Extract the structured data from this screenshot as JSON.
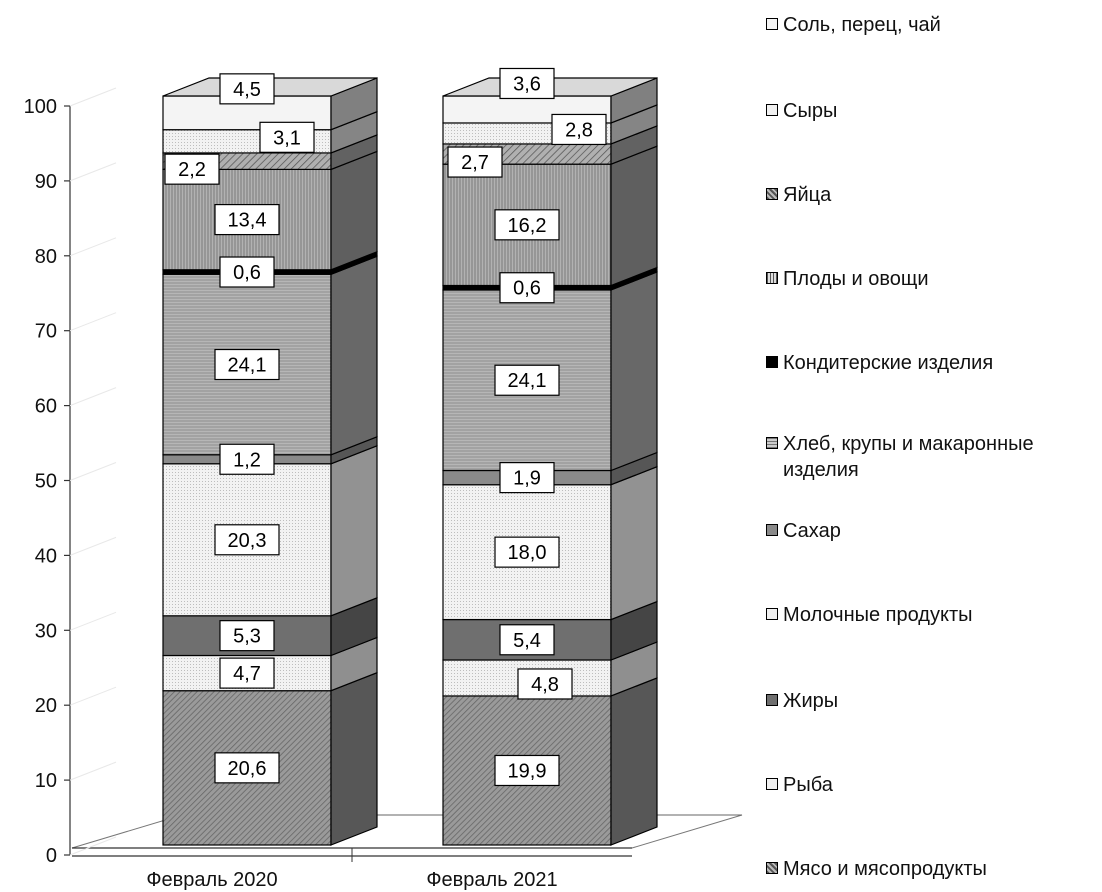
{
  "chart_data": {
    "type": "bar",
    "stacked": true,
    "three_d": true,
    "categories": [
      "Февраль 2020",
      "Февраль 2021"
    ],
    "ylim": [
      0,
      100
    ],
    "yticks": [
      "0",
      "10",
      "20",
      "30",
      "40",
      "50",
      "60",
      "70",
      "80",
      "90",
      "100"
    ],
    "series": [
      {
        "name": "Мясо и мясопродукты",
        "values": [
          20.6,
          19.9
        ],
        "labels": [
          "20,6",
          "19,9"
        ],
        "color": "#8c8c8c",
        "pattern": "diag-dense"
      },
      {
        "name": "Рыба",
        "values": [
          4.7,
          4.8
        ],
        "labels": [
          "4,7",
          "4,8"
        ],
        "color": "#e6e6e6",
        "pattern": "dots"
      },
      {
        "name": "Жиры",
        "values": [
          5.3,
          5.4
        ],
        "labels": [
          "5,3",
          "5,4"
        ],
        "color": "#6f6f6f",
        "pattern": "solid"
      },
      {
        "name": "Молочные продукты",
        "values": [
          20.3,
          18.0
        ],
        "labels": [
          "20,3",
          "18,0"
        ],
        "color": "#ececec",
        "pattern": "dots"
      },
      {
        "name": "Сахар",
        "values": [
          1.2,
          1.9
        ],
        "labels": [
          "1,2",
          "1,9"
        ],
        "color": "#8a8a8a",
        "pattern": "solid"
      },
      {
        "name": "Хлеб, крупы и макаронные изделия",
        "values": [
          24.1,
          24.1
        ],
        "labels": [
          "24,1",
          "24,1"
        ],
        "color": "#a8a8a8",
        "pattern": "hlines"
      },
      {
        "name": "Кондитерские изделия",
        "values": [
          0.6,
          0.6
        ],
        "labels": [
          "0,6",
          "0,6"
        ],
        "color": "#000000",
        "pattern": "solid"
      },
      {
        "name": "Плоды и овощи",
        "values": [
          13.4,
          16.2
        ],
        "labels": [
          "13,4",
          "16,2"
        ],
        "color": "#9a9a9a",
        "pattern": "vlines"
      },
      {
        "name": "Яйца",
        "values": [
          2.2,
          2.7
        ],
        "labels": [
          "2,2",
          "2,7"
        ],
        "color": "#9e9e9e",
        "pattern": "diag"
      },
      {
        "name": "Сыры",
        "values": [
          3.1,
          2.8
        ],
        "labels": [
          "3,1",
          "2,8"
        ],
        "color": "#d6d6d6",
        "pattern": "dots"
      },
      {
        "name": "Соль, перец, чай",
        "values": [
          4.5,
          3.6
        ],
        "labels": [
          "4,5",
          "3,6"
        ],
        "color": "#f4f4f4",
        "pattern": "solid"
      }
    ],
    "legend": {
      "placement": "right",
      "order": [
        "Соль, перец, чай",
        "Сыры",
        "Яйца",
        "Плоды и овощи",
        "Кондитерские изделия",
        "Хлеб, крупы и макаронные изделия",
        "Сахар",
        "Молочные продукты",
        "Жиры",
        "Рыба",
        "Мясо и мясопродукты"
      ]
    },
    "grid": false,
    "title": "",
    "xlabel": "",
    "ylabel": ""
  }
}
